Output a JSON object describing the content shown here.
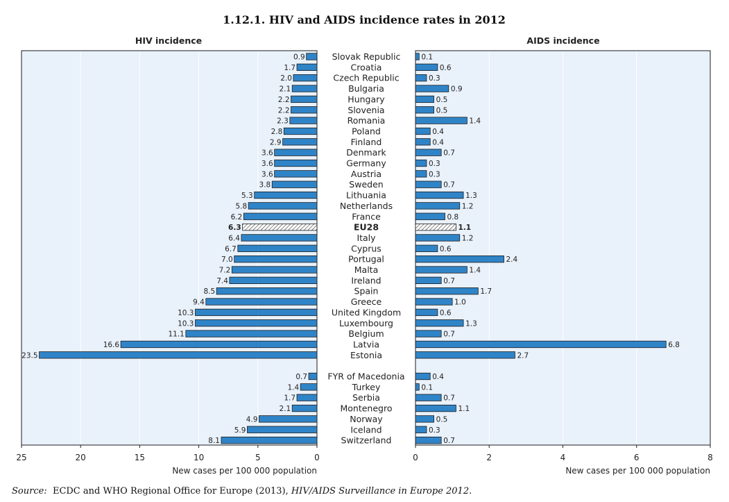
{
  "title": "1.12.1.   HIV and AIDS incidence rates in 2012",
  "source": {
    "label": "Source:",
    "text_plain": "  ECDC and WHO Regional Office for Europe (2013), ",
    "text_italic": "HIV/AIDS Surveillance in Europe 2012",
    "text_end": "."
  },
  "colors": {
    "bar": "#2f84c8",
    "plot_bg": "#e9f1fa",
    "outline": "#1c1c1c"
  },
  "chart_data": [
    {
      "type": "bar",
      "orientation": "horizontal-reversed",
      "title": "HIV incidence",
      "xlabel": "New cases per 100 000 population",
      "xlim": [
        0,
        25
      ],
      "xticks": [
        25,
        20,
        15,
        10,
        5,
        0
      ],
      "grid": true,
      "highlight_category": "EU28",
      "group1_categories": [
        "Slovak Republic",
        "Croatia",
        "Czech Republic",
        "Bulgaria",
        "Hungary",
        "Slovenia",
        "Romania",
        "Poland",
        "Finland",
        "Denmark",
        "Germany",
        "Austria",
        "Sweden",
        "Lithuania",
        "Netherlands",
        "France",
        "EU28",
        "Italy",
        "Cyprus",
        "Portugal",
        "Malta",
        "Ireland",
        "Spain",
        "Greece",
        "United Kingdom",
        "Luxembourg",
        "Belgium",
        "Latvia",
        "Estonia"
      ],
      "group1_values": [
        0.9,
        1.7,
        2.0,
        2.1,
        2.2,
        2.2,
        2.3,
        2.8,
        2.9,
        3.6,
        3.6,
        3.6,
        3.8,
        5.3,
        5.8,
        6.2,
        6.3,
        6.4,
        6.7,
        7.0,
        7.2,
        7.4,
        8.5,
        9.4,
        10.3,
        10.3,
        11.1,
        16.6,
        23.5
      ],
      "group2_categories": [
        "FYR of Macedonia",
        "Turkey",
        "Serbia",
        "Montenegro",
        "Norway",
        "Iceland",
        "Switzerland"
      ],
      "group2_values": [
        0.7,
        1.4,
        1.7,
        2.1,
        4.9,
        5.9,
        8.1
      ]
    },
    {
      "type": "bar",
      "orientation": "horizontal",
      "title": "AIDS incidence",
      "xlabel": "New cases per 100 000 population",
      "xlim": [
        0,
        8
      ],
      "xticks": [
        0,
        2,
        4,
        6,
        8
      ],
      "grid": true,
      "highlight_category": "EU28",
      "group1_values": [
        0.1,
        0.6,
        0.3,
        0.9,
        0.5,
        0.5,
        1.4,
        0.4,
        0.4,
        0.7,
        0.3,
        0.3,
        0.7,
        1.3,
        1.2,
        0.8,
        1.1,
        1.2,
        0.6,
        2.4,
        1.4,
        0.7,
        1.7,
        1.0,
        0.6,
        1.3,
        0.7,
        6.8,
        2.7
      ],
      "group2_values": [
        0.4,
        0.1,
        0.7,
        1.1,
        0.5,
        0.3,
        0.7
      ]
    }
  ]
}
